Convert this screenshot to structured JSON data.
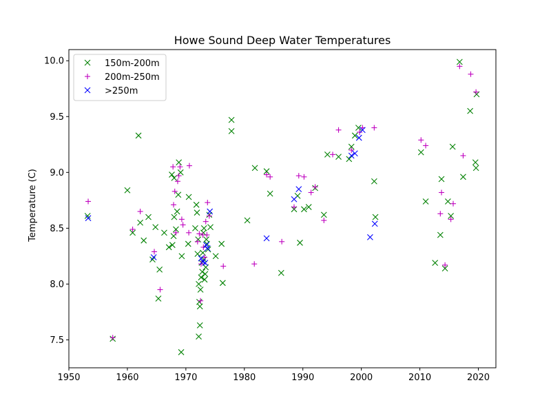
{
  "chart_data": {
    "type": "scatter",
    "title": "Howe Sound Deep Water Temperatures",
    "xlabel": "",
    "ylabel": "Temperature (C)",
    "xlim": [
      1950,
      2023
    ],
    "ylim": [
      7.25,
      10.1
    ],
    "xticks": [
      1950,
      1960,
      1970,
      1980,
      1990,
      2000,
      2010,
      2020
    ],
    "yticks": [
      7.5,
      8.0,
      8.5,
      9.0,
      9.5,
      10.0
    ],
    "xtick_labels": [
      "1950",
      "1960",
      "1970",
      "1980",
      "1990",
      "2000",
      "2010",
      "2020"
    ],
    "ytick_labels": [
      "7.5",
      "8.0",
      "8.5",
      "9.0",
      "9.5",
      "10.0"
    ],
    "grid": false,
    "legend_position": "top-left",
    "series": [
      {
        "name": "150m-200m",
        "marker": "x",
        "color": "#008000",
        "points": [
          [
            1953.2,
            8.61
          ],
          [
            1957.5,
            7.51
          ],
          [
            1960.0,
            8.84
          ],
          [
            1960.9,
            8.46
          ],
          [
            1961.9,
            9.33
          ],
          [
            1962.2,
            8.55
          ],
          [
            1962.8,
            8.39
          ],
          [
            1963.6,
            8.6
          ],
          [
            1964.3,
            8.22
          ],
          [
            1964.8,
            8.51
          ],
          [
            1965.3,
            7.87
          ],
          [
            1965.5,
            8.13
          ],
          [
            1966.3,
            8.46
          ],
          [
            1967.1,
            8.33
          ],
          [
            1967.6,
            8.98
          ],
          [
            1967.7,
            8.35
          ],
          [
            1967.9,
            8.43
          ],
          [
            1968.0,
            8.6
          ],
          [
            1968.0,
            8.95
          ],
          [
            1968.3,
            8.49
          ],
          [
            1968.5,
            8.65
          ],
          [
            1968.7,
            8.8
          ],
          [
            1968.8,
            9.09
          ],
          [
            1969.1,
            9.0
          ],
          [
            1969.2,
            7.39
          ],
          [
            1969.3,
            8.25
          ],
          [
            1970.4,
            8.36
          ],
          [
            1970.5,
            8.78
          ],
          [
            1971.6,
            8.5
          ],
          [
            1971.8,
            8.71
          ],
          [
            1971.9,
            8.64
          ],
          [
            1972.0,
            8.27
          ],
          [
            1972.1,
            8.4
          ],
          [
            1972.2,
            8.0
          ],
          [
            1972.2,
            7.53
          ],
          [
            1972.3,
            7.84
          ],
          [
            1972.4,
            7.63
          ],
          [
            1972.4,
            7.8
          ],
          [
            1972.5,
            7.95
          ],
          [
            1972.6,
            8.06
          ],
          [
            1972.7,
            8.19
          ],
          [
            1972.8,
            8.11
          ],
          [
            1972.9,
            8.28
          ],
          [
            1973.0,
            8.46
          ],
          [
            1973.1,
            8.5
          ],
          [
            1973.1,
            8.22
          ],
          [
            1973.2,
            8.04
          ],
          [
            1973.3,
            8.09
          ],
          [
            1973.4,
            8.15
          ],
          [
            1973.5,
            8.4
          ],
          [
            1973.6,
            8.36
          ],
          [
            1973.8,
            8.31
          ],
          [
            1974.0,
            8.62
          ],
          [
            1974.2,
            8.51
          ],
          [
            1975.1,
            8.25
          ],
          [
            1976.1,
            8.36
          ],
          [
            1976.3,
            8.01
          ],
          [
            1977.8,
            9.47
          ],
          [
            1977.8,
            9.37
          ],
          [
            1980.5,
            8.57
          ],
          [
            1981.8,
            9.04
          ],
          [
            1983.8,
            9.01
          ],
          [
            1984.4,
            8.81
          ],
          [
            1986.3,
            8.1
          ],
          [
            1988.5,
            8.67
          ],
          [
            1989.1,
            8.79
          ],
          [
            1989.5,
            8.37
          ],
          [
            1990.2,
            8.67
          ],
          [
            1991.0,
            8.69
          ],
          [
            1992.1,
            8.86
          ],
          [
            1993.6,
            8.62
          ],
          [
            1994.2,
            9.16
          ],
          [
            1996.1,
            9.14
          ],
          [
            1997.9,
            9.12
          ],
          [
            1998.3,
            9.23
          ],
          [
            1998.9,
            9.33
          ],
          [
            1999.5,
            9.4
          ],
          [
            2002.2,
            8.92
          ],
          [
            2002.4,
            8.6
          ],
          [
            2010.2,
            9.18
          ],
          [
            2011.0,
            8.74
          ],
          [
            2012.6,
            8.19
          ],
          [
            2013.5,
            8.44
          ],
          [
            2013.7,
            8.94
          ],
          [
            2014.3,
            8.14
          ],
          [
            2014.8,
            8.74
          ],
          [
            2015.3,
            8.61
          ],
          [
            2015.6,
            9.23
          ],
          [
            2016.8,
            9.99
          ],
          [
            2017.4,
            8.96
          ],
          [
            2018.6,
            9.55
          ],
          [
            2019.5,
            9.09
          ],
          [
            2019.6,
            9.04
          ],
          [
            2019.7,
            9.7
          ]
        ]
      },
      {
        "name": "200m-250m",
        "marker": "+",
        "color": "#bf00bf",
        "points": [
          [
            1953.3,
            8.74
          ],
          [
            1957.5,
            7.52
          ],
          [
            1960.9,
            8.49
          ],
          [
            1962.2,
            8.65
          ],
          [
            1964.6,
            8.29
          ],
          [
            1965.6,
            7.95
          ],
          [
            1967.8,
            9.05
          ],
          [
            1967.9,
            8.71
          ],
          [
            1968.1,
            8.83
          ],
          [
            1968.3,
            8.46
          ],
          [
            1968.6,
            8.92
          ],
          [
            1968.8,
            8.97
          ],
          [
            1969.0,
            9.05
          ],
          [
            1969.3,
            8.58
          ],
          [
            1969.5,
            8.53
          ],
          [
            1970.5,
            8.46
          ],
          [
            1970.6,
            9.06
          ],
          [
            1972.0,
            8.38
          ],
          [
            1972.3,
            8.45
          ],
          [
            1972.5,
            7.85
          ],
          [
            1972.6,
            8.18
          ],
          [
            1972.9,
            8.44
          ],
          [
            1973.0,
            8.33
          ],
          [
            1973.2,
            8.24
          ],
          [
            1973.4,
            8.56
          ],
          [
            1973.6,
            8.44
          ],
          [
            1973.7,
            8.73
          ],
          [
            1974.0,
            8.61
          ],
          [
            1976.4,
            8.16
          ],
          [
            1981.7,
            8.18
          ],
          [
            1983.8,
            8.98
          ],
          [
            1984.4,
            8.96
          ],
          [
            1986.4,
            8.38
          ],
          [
            1988.5,
            8.69
          ],
          [
            1989.3,
            8.97
          ],
          [
            1990.2,
            8.96
          ],
          [
            1991.4,
            8.82
          ],
          [
            1992.1,
            8.87
          ],
          [
            1993.6,
            8.57
          ],
          [
            1995.1,
            9.16
          ],
          [
            1996.1,
            9.38
          ],
          [
            1998.3,
            9.2
          ],
          [
            1999.7,
            9.36
          ],
          [
            2000.2,
            9.4
          ],
          [
            2002.2,
            9.4
          ],
          [
            2010.2,
            9.29
          ],
          [
            2011.0,
            9.24
          ],
          [
            2013.5,
            8.63
          ],
          [
            2013.7,
            8.82
          ],
          [
            2014.3,
            8.17
          ],
          [
            2015.3,
            8.58
          ],
          [
            2015.7,
            8.72
          ],
          [
            2016.8,
            9.95
          ],
          [
            2017.4,
            9.15
          ],
          [
            2018.7,
            9.88
          ],
          [
            2019.6,
            9.72
          ]
        ]
      },
      {
        "name": ">250m",
        "marker": "x",
        "color": "#0000ff",
        "points": [
          [
            1953.3,
            8.59
          ],
          [
            1964.5,
            8.24
          ],
          [
            1972.6,
            8.23
          ],
          [
            1972.9,
            8.2
          ],
          [
            1973.3,
            8.19
          ],
          [
            1973.5,
            8.35
          ],
          [
            1973.7,
            8.32
          ],
          [
            1974.1,
            8.65
          ],
          [
            1983.8,
            8.41
          ],
          [
            1988.5,
            8.76
          ],
          [
            1989.3,
            8.85
          ],
          [
            1998.3,
            9.15
          ],
          [
            1998.9,
            9.17
          ],
          [
            1999.6,
            9.31
          ],
          [
            2000.2,
            9.38
          ],
          [
            2001.5,
            8.42
          ],
          [
            2002.3,
            8.54
          ]
        ]
      }
    ]
  }
}
